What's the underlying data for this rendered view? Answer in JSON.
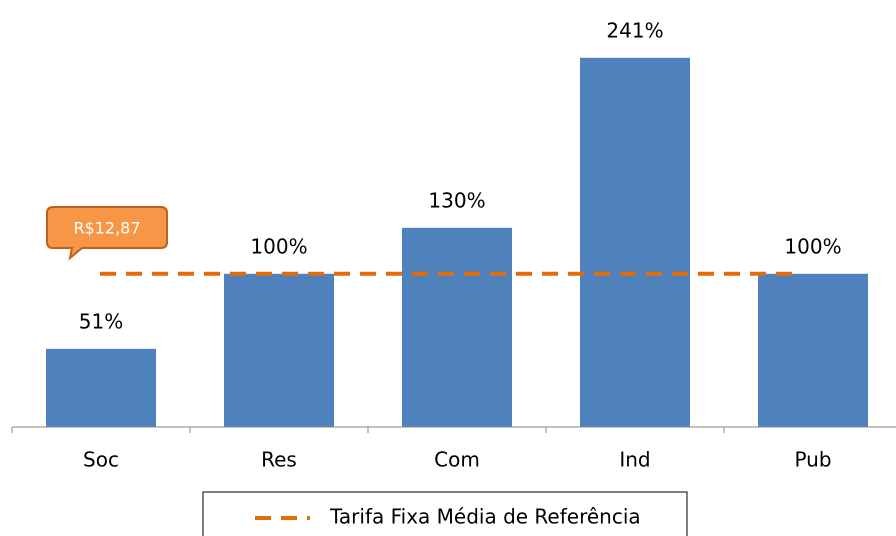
{
  "chart_data": {
    "type": "bar",
    "categories": [
      "Soc",
      "Res",
      "Com",
      "Ind",
      "Pub"
    ],
    "values": [
      51,
      100,
      130,
      241,
      100
    ],
    "value_labels": [
      "51%",
      "100%",
      "130%",
      "241%",
      "100%"
    ],
    "color": "#4f81bd",
    "ylim": [
      0,
      250
    ],
    "reference_line": {
      "name": "Tarifa Fixa Média de Referência",
      "value": 100,
      "color": "#e36c09",
      "label": "R$12,87"
    },
    "legend": "bottom"
  }
}
